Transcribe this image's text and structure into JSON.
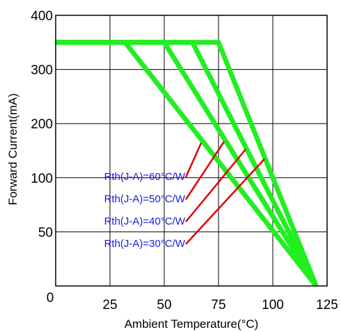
{
  "chart_data": {
    "type": "line",
    "title": "",
    "xlabel": "Ambient Temperature(°C)",
    "ylabel": "Forward Current(mA)",
    "xlim": [
      0,
      120
    ],
    "x_ticks": [
      {
        "value": 0,
        "label": "0"
      },
      {
        "value": 25,
        "label": "25"
      },
      {
        "value": 50,
        "label": "50"
      },
      {
        "value": 75,
        "label": "75"
      },
      {
        "value": 100,
        "label": "100"
      },
      {
        "value": 125,
        "label": "125"
      }
    ],
    "y_ticks": [
      {
        "level": 0,
        "label": "50"
      },
      {
        "level": 1,
        "label": "100"
      },
      {
        "level": 2,
        "label": "200"
      },
      {
        "level": 3,
        "label": "300"
      },
      {
        "level": 4,
        "label": "400"
      }
    ],
    "y_max_level": 5,
    "grid": true,
    "line_color": "#22ee22",
    "leader_color": "#e00000",
    "label_color": "#1a1adb",
    "series": [
      {
        "label": "Rth(J-A)=60°C/W",
        "points": [
          [
            -5,
            350
          ],
          [
            32,
            350
          ],
          [
            120,
            0
          ]
        ]
      },
      {
        "label": "Rth(J-A)=50°C/W",
        "points": [
          [
            -5,
            350
          ],
          [
            50,
            350
          ],
          [
            120,
            0
          ]
        ]
      },
      {
        "label": "Rth(J-A)=40°C/W",
        "points": [
          [
            -5,
            350
          ],
          [
            63,
            350
          ],
          [
            120,
            0
          ]
        ]
      },
      {
        "label": "Rth(J-A)=30°C/W",
        "points": [
          [
            -5,
            350
          ],
          [
            75,
            350
          ],
          [
            120,
            0
          ]
        ]
      }
    ]
  }
}
